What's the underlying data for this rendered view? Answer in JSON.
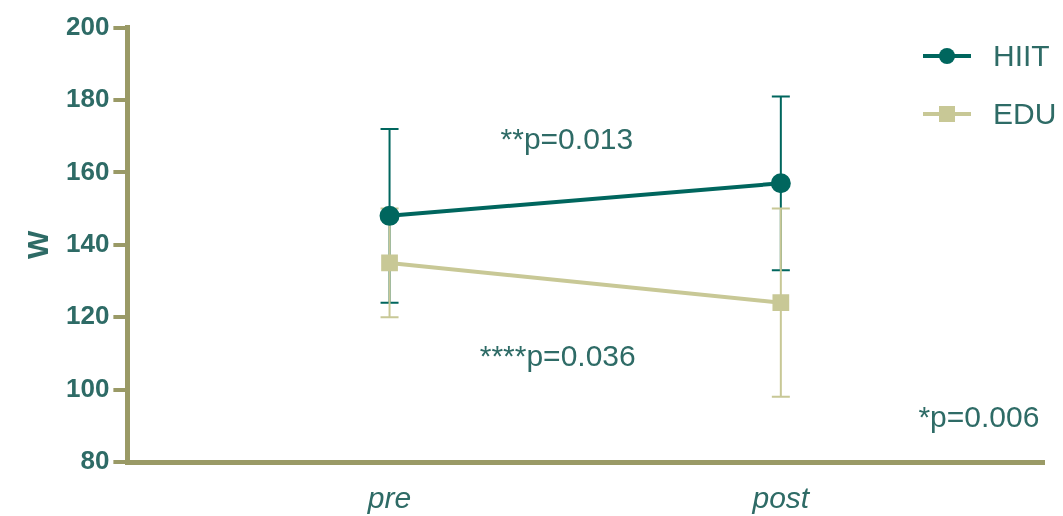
{
  "chart_data": {
    "type": "line",
    "ylabel": "W",
    "categories": [
      "pre",
      "post"
    ],
    "series": [
      {
        "name": "HIIT",
        "color": "#00665e",
        "marker": "circle",
        "values": [
          148,
          157
        ],
        "errors": [
          24,
          24
        ]
      },
      {
        "name": "EDU",
        "color": "#c8c896",
        "marker": "square",
        "values": [
          135,
          124
        ],
        "errors": [
          15,
          26
        ]
      }
    ],
    "ylim": [
      80,
      200
    ],
    "yticks": [
      80,
      100,
      120,
      140,
      160,
      180,
      200
    ],
    "grid": false,
    "legend": "top right",
    "annotations": [
      "**p=0.013",
      "****p=0.036",
      "*p=0.006"
    ]
  }
}
